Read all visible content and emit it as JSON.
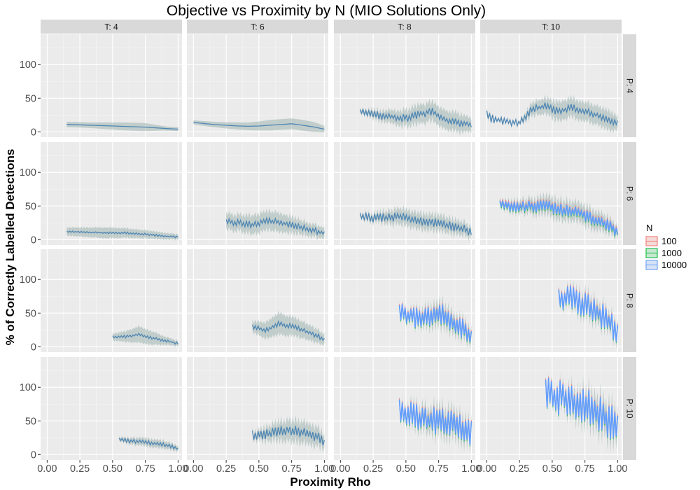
{
  "chart_data": {
    "type": "line",
    "title": "Objective vs Proximity by N (MIO Solutions Only)",
    "xlabel": "Proximity Rho",
    "ylabel": "% of Correctly Labelled Detections",
    "xlim": [
      -0.05,
      1.03
    ],
    "ylim": [
      -8,
      145
    ],
    "x_ticks": [
      0.0,
      0.25,
      0.5,
      0.75,
      1.0
    ],
    "x_tick_labels": [
      "0.00",
      "0.25",
      "0.50",
      "0.75",
      "1.00"
    ],
    "y_ticks": [
      0,
      50,
      100
    ],
    "y_tick_labels": [
      "0",
      "50",
      "100"
    ],
    "facet_cols": [
      "T: 4",
      "T: 6",
      "T: 8",
      "T: 10"
    ],
    "facet_rows": [
      "P: 4",
      "P: 6",
      "P: 8",
      "P: 10"
    ],
    "legend": {
      "title": "N",
      "position": "right",
      "entries": [
        {
          "label": "100",
          "color": "#F8766D"
        },
        {
          "label": "1000",
          "color": "#00BA38"
        },
        {
          "label": "10000",
          "color": "#619CFF"
        }
      ]
    },
    "grid": true,
    "panels": [
      {
        "col": "T: 4",
        "row": "P: 4",
        "x": [
          0.15,
          0.3,
          0.45,
          0.6,
          0.75,
          0.9,
          1.0
        ],
        "y": [
          11,
          10,
          9,
          8,
          7,
          5,
          4
        ],
        "band": [
          4,
          4,
          5,
          6,
          6,
          3,
          3
        ],
        "jagged": 0
      },
      {
        "col": "T: 6",
        "row": "P: 4",
        "x": [
          0.0,
          0.15,
          0.3,
          0.45,
          0.6,
          0.75,
          0.9,
          1.0
        ],
        "y": [
          14,
          11,
          9,
          8,
          10,
          12,
          8,
          4
        ],
        "band": [
          3,
          4,
          5,
          6,
          8,
          8,
          8,
          5
        ],
        "jagged": 0
      },
      {
        "col": "T: 8",
        "row": "P: 4",
        "x": [
          0.15,
          0.25,
          0.4,
          0.5,
          0.6,
          0.7,
          0.8,
          0.9,
          1.0
        ],
        "y": [
          30,
          26,
          22,
          20,
          26,
          30,
          18,
          14,
          10
        ],
        "band": [
          3,
          6,
          10,
          12,
          14,
          14,
          14,
          14,
          10
        ],
        "jagged": 6
      },
      {
        "col": "T: 10",
        "row": "P: 4",
        "x": [
          0.0,
          0.03,
          0.1,
          0.25,
          0.35,
          0.45,
          0.55,
          0.65,
          0.75,
          0.85,
          0.95,
          1.0
        ],
        "y": [
          28,
          20,
          17,
          13,
          34,
          38,
          30,
          36,
          30,
          24,
          16,
          12
        ],
        "band": [
          5,
          3,
          2,
          2,
          10,
          12,
          14,
          14,
          14,
          14,
          14,
          10
        ],
        "jagged": 6
      },
      {
        "col": "T: 4",
        "row": "P: 6",
        "x": [
          0.15,
          0.3,
          0.45,
          0.6,
          0.75,
          0.9,
          1.0
        ],
        "y": [
          12,
          11,
          10,
          10,
          8,
          5,
          4
        ],
        "band": [
          6,
          7,
          8,
          7,
          6,
          5,
          4
        ],
        "jagged": 1.5
      },
      {
        "col": "T: 6",
        "row": "P: 6",
        "x": [
          0.25,
          0.35,
          0.45,
          0.55,
          0.65,
          0.75,
          0.85,
          0.95,
          1.0
        ],
        "y": [
          27,
          25,
          22,
          28,
          26,
          22,
          17,
          12,
          9
        ],
        "band": [
          12,
          12,
          14,
          14,
          14,
          12,
          10,
          9,
          8
        ],
        "jagged": 5
      },
      {
        "col": "T: 8",
        "row": "P: 6",
        "x": [
          0.15,
          0.25,
          0.35,
          0.45,
          0.55,
          0.65,
          0.75,
          0.85,
          0.95,
          1.0
        ],
        "y": [
          35,
          32,
          33,
          34,
          30,
          27,
          24,
          20,
          15,
          10
        ],
        "band": [
          3,
          6,
          9,
          12,
          12,
          12,
          12,
          11,
          10,
          8
        ],
        "jagged": 7
      },
      {
        "col": "T: 10",
        "row": "P: 6",
        "x": [
          0.1,
          0.2,
          0.3,
          0.4,
          0.5,
          0.6,
          0.7,
          0.8,
          0.9,
          1.0
        ],
        "y": [
          52,
          48,
          50,
          50,
          48,
          44,
          40,
          32,
          24,
          12
        ],
        "band": [
          5,
          8,
          10,
          12,
          14,
          14,
          14,
          14,
          12,
          8
        ],
        "jagged": 9
      },
      {
        "col": "T: 4",
        "row": "P: 8",
        "x": [
          0.5,
          0.6,
          0.7,
          0.8,
          0.9,
          1.0
        ],
        "y": [
          15,
          15,
          18,
          13,
          9,
          5
        ],
        "band": [
          5,
          8,
          12,
          10,
          6,
          4
        ],
        "jagged": 2
      },
      {
        "col": "T: 6",
        "row": "P: 8",
        "x": [
          0.45,
          0.55,
          0.65,
          0.75,
          0.85,
          0.95,
          1.0
        ],
        "y": [
          30,
          24,
          34,
          30,
          24,
          16,
          10
        ],
        "band": [
          8,
          12,
          16,
          14,
          12,
          10,
          8
        ],
        "jagged": 4
      },
      {
        "col": "T: 8",
        "row": "P: 8",
        "x": [
          0.45,
          0.55,
          0.65,
          0.75,
          0.85,
          0.95,
          1.0
        ],
        "y": [
          50,
          44,
          42,
          52,
          36,
          26,
          16
        ],
        "band": [
          5,
          8,
          12,
          16,
          14,
          12,
          10
        ],
        "jagged": 16
      },
      {
        "col": "T: 10",
        "row": "P: 8",
        "x": [
          0.55,
          0.65,
          0.75,
          0.85,
          0.95,
          1.0
        ],
        "y": [
          70,
          72,
          62,
          50,
          34,
          22
        ],
        "band": [
          6,
          10,
          14,
          14,
          12,
          10
        ],
        "jagged": 20
      },
      {
        "col": "T: 4",
        "row": "P: 10",
        "x": [
          0.55,
          0.65,
          0.75,
          0.85,
          0.95,
          1.0
        ],
        "y": [
          22,
          20,
          18,
          16,
          12,
          8
        ],
        "band": [
          3,
          5,
          6,
          6,
          5,
          4
        ],
        "jagged": 3
      },
      {
        "col": "T: 6",
        "row": "P: 10",
        "x": [
          0.45,
          0.55,
          0.65,
          0.75,
          0.85,
          0.95,
          1.0
        ],
        "y": [
          29,
          30,
          34,
          36,
          32,
          26,
          18
        ],
        "band": [
          5,
          10,
          14,
          16,
          16,
          14,
          10
        ],
        "jagged": 8
      },
      {
        "col": "T: 8",
        "row": "P: 10",
        "x": [
          0.45,
          0.55,
          0.65,
          0.75,
          0.85,
          0.95,
          1.0
        ],
        "y": [
          65,
          58,
          52,
          50,
          45,
          40,
          32
        ],
        "band": [
          6,
          12,
          16,
          18,
          18,
          16,
          12
        ],
        "jagged": 20
      },
      {
        "col": "T: 10",
        "row": "P: 10",
        "x": [
          0.45,
          0.55,
          0.65,
          0.75,
          0.85,
          0.95,
          1.0
        ],
        "y": [
          87,
          85,
          80,
          72,
          62,
          48,
          40
        ],
        "band": [
          6,
          10,
          16,
          20,
          22,
          22,
          18
        ],
        "jagged": 28
      }
    ]
  }
}
